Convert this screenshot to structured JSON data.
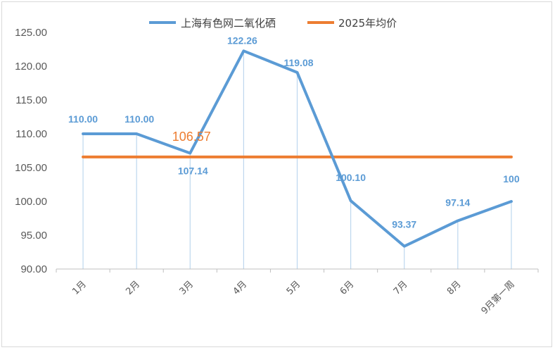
{
  "chart_data": {
    "type": "line",
    "title": "",
    "xlabel": "",
    "ylabel": "",
    "categories": [
      "1月",
      "2月",
      "3月",
      "4月",
      "5月",
      "6月",
      "7月",
      "8月",
      "9月第一周"
    ],
    "ylim": [
      90,
      125
    ],
    "yticks": [
      "90.00",
      "95.00",
      "100.00",
      "105.00",
      "110.00",
      "115.00",
      "120.00",
      "125.00"
    ],
    "grid": false,
    "legend_position": "top",
    "series": [
      {
        "name": "上海有色网二氧化硒",
        "color": "#5b9bd5",
        "values": [
          110.0,
          110.0,
          107.14,
          122.26,
          119.08,
          100.1,
          93.37,
          97.14,
          100
        ],
        "labels": [
          "110.00",
          "110.00",
          "107.14",
          "122.26",
          "119.08",
          "100.10",
          "93.37",
          "97.14",
          "100"
        ]
      },
      {
        "name": "2025年均价",
        "color": "#ed7d31",
        "values": [
          106.57,
          106.57,
          106.57,
          106.57,
          106.57,
          106.57,
          106.57,
          106.57,
          106.57
        ],
        "label": "106.57"
      }
    ]
  }
}
